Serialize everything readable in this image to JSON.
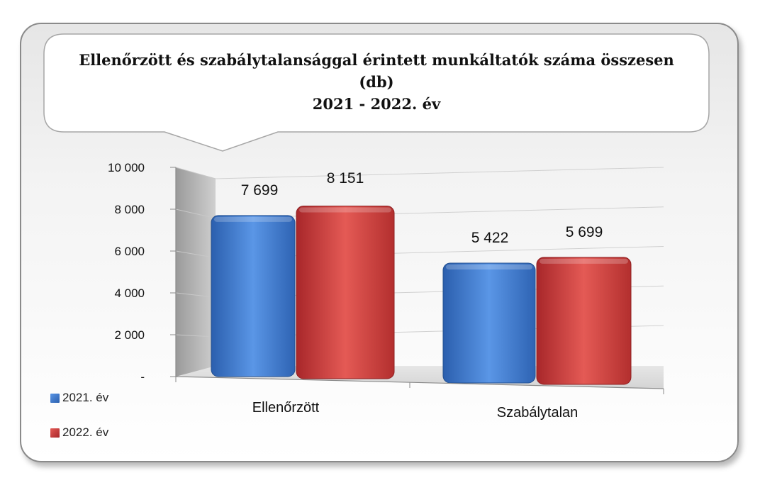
{
  "chart_data": {
    "type": "bar",
    "title": "Ellenőrzött és szabálytalansággal érintett munkáltatók száma összesen (db)",
    "subtitle": "2021 - 2022. év",
    "categories": [
      "Ellenőrzött",
      "Szabálytalan"
    ],
    "series": [
      {
        "name": "2021. év",
        "values": [
          7699,
          5422
        ],
        "labels": [
          "7 699",
          "5 422"
        ],
        "color": "#3f7fd5"
      },
      {
        "name": "2022. év",
        "values": [
          8151,
          5699
        ],
        "labels": [
          "8 151",
          "5 699"
        ],
        "color": "#d8403e"
      }
    ],
    "y_ticks": [
      0,
      2000,
      4000,
      6000,
      8000,
      10000
    ],
    "y_tick_labels": [
      "-",
      "2 000",
      "4 000",
      "6 000",
      "8 000",
      "10 000"
    ],
    "ylim": [
      0,
      10000
    ],
    "grid": true,
    "legend_position": "bottom-left"
  }
}
